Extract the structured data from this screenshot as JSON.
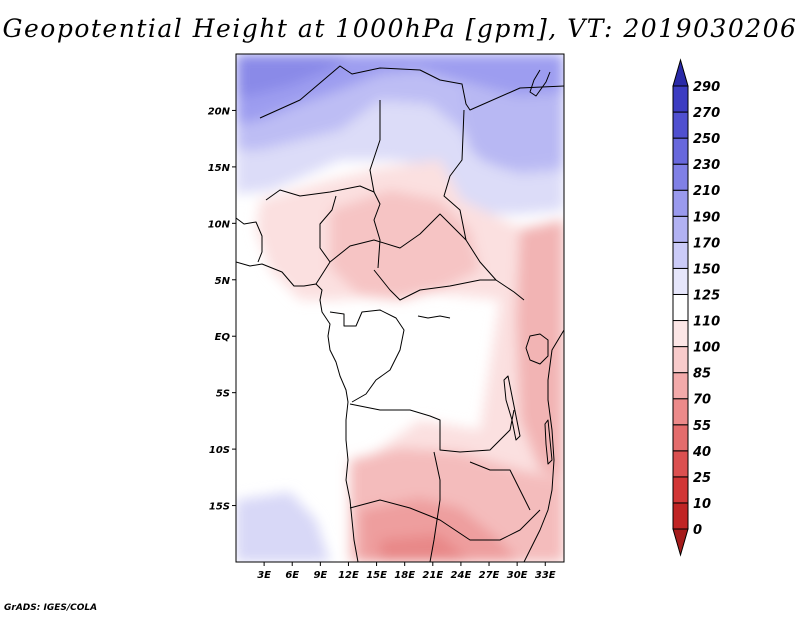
{
  "title": "Geopotential Height at 1000hPa [gpm], VT: 2019030206",
  "credit": "GrADS: IGES/COLA",
  "map": {
    "lon_range": [
      0,
      35
    ],
    "lat_range": [
      -20,
      25
    ],
    "x_ticks": [
      "3E",
      "6E",
      "9E",
      "12E",
      "15E",
      "18E",
      "21E",
      "24E",
      "27E",
      "30E",
      "33E"
    ],
    "x_tick_values": [
      3,
      6,
      9,
      12,
      15,
      18,
      21,
      24,
      27,
      30,
      33
    ],
    "y_ticks": [
      "20N",
      "15N",
      "10N",
      "5N",
      "EQ",
      "5S",
      "10S",
      "15S"
    ],
    "y_tick_values": [
      20,
      15,
      10,
      5,
      0,
      -5,
      -10,
      -15
    ]
  },
  "colorbar": {
    "labels": [
      "0",
      "10",
      "25",
      "40",
      "55",
      "70",
      "85",
      "100",
      "110",
      "125",
      "150",
      "170",
      "190",
      "210",
      "230",
      "250",
      "270",
      "290"
    ],
    "colors": [
      "#a51c1c",
      "#c02424",
      "#d23636",
      "#db5050",
      "#e46c6c",
      "#ec8a8a",
      "#f3aaaa",
      "#f8cbcb",
      "#fce6e6",
      "#ffffff",
      "#e6e6fb",
      "#cbcbf8",
      "#b2b2f3",
      "#9a9aee",
      "#8080e6",
      "#6868dc",
      "#5050d0",
      "#3c3cc2",
      "#2a2aa8"
    ]
  }
}
